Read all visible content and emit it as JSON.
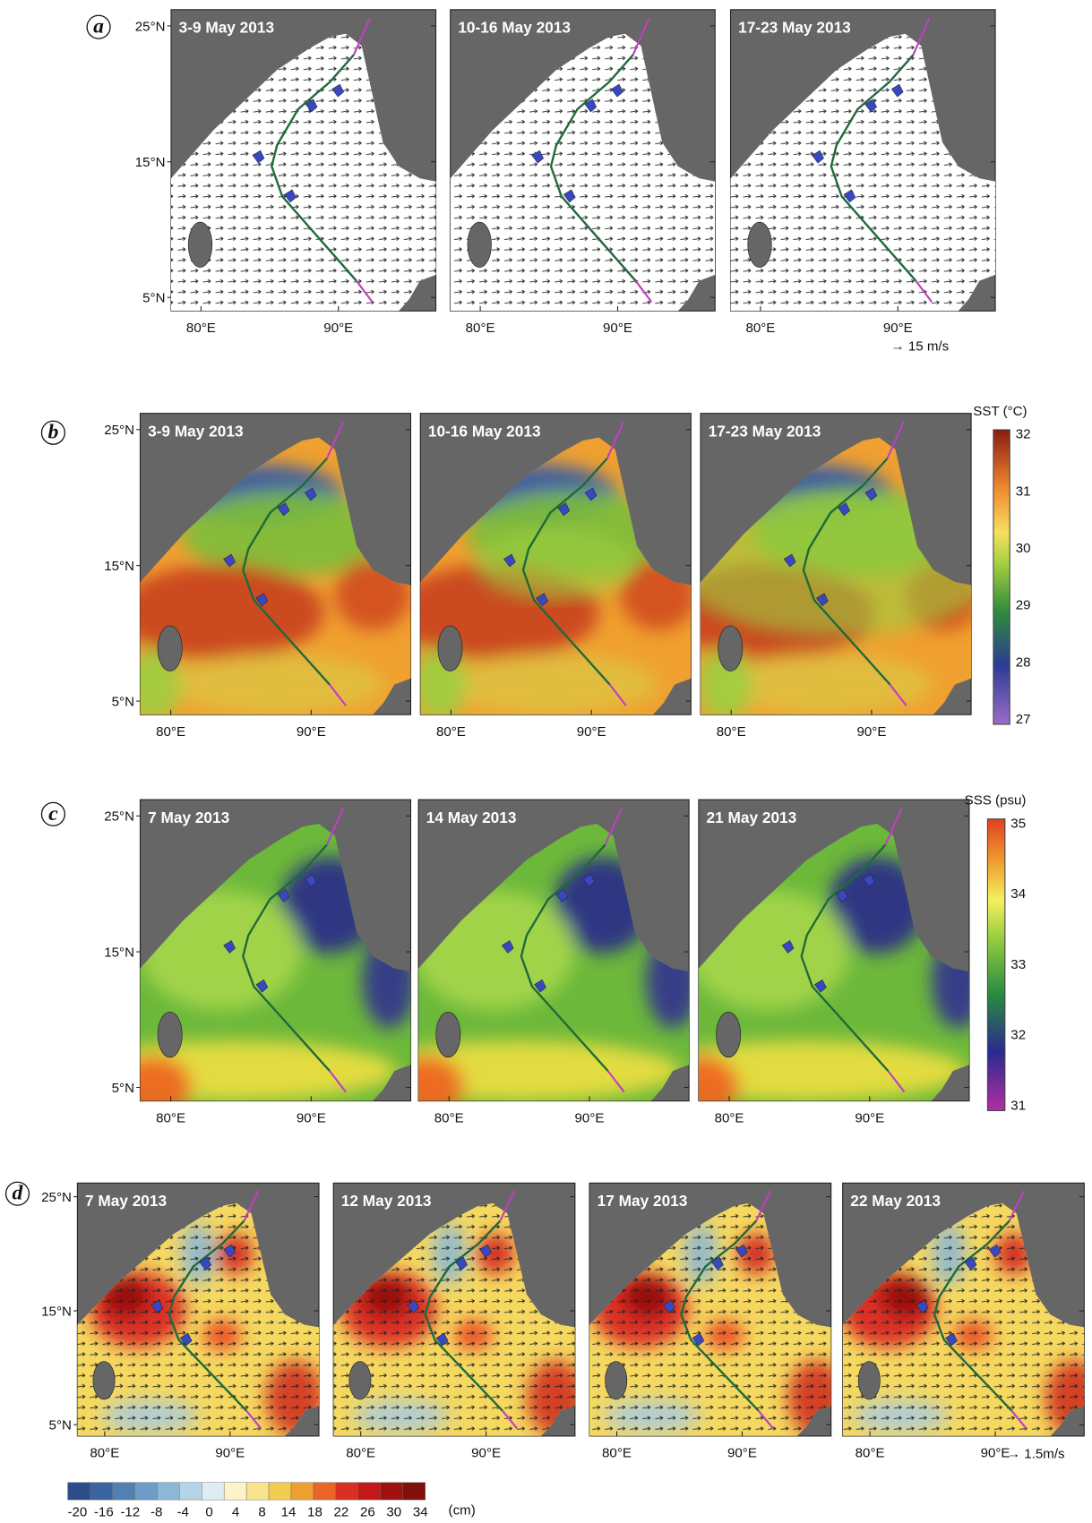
{
  "rows": [
    {
      "label": "a",
      "panels": [
        "3-9 May 2013",
        "10-16 May 2013",
        "17-23 May 2013"
      ],
      "y_ticks": [
        "25°N",
        "15°N",
        "5°N"
      ],
      "x_ticks": [
        "80°E",
        "90°E"
      ],
      "note": "→ 15 m/s"
    },
    {
      "label": "b",
      "panels": [
        "3-9 May 2013",
        "10-16 May 2013",
        "17-23 May 2013"
      ],
      "y_ticks": [
        "25°N",
        "15°N",
        "5°N"
      ],
      "x_ticks": [
        "80°E",
        "90°E"
      ],
      "colorbar": {
        "title": "SST (°C)",
        "ticks": [
          32,
          31,
          30,
          29,
          28,
          27
        ]
      }
    },
    {
      "label": "c",
      "panels": [
        "7 May 2013",
        "14 May 2013",
        "21 May 2013"
      ],
      "y_ticks": [
        "25°N",
        "15°N",
        "5°N"
      ],
      "x_ticks": [
        "80°E",
        "90°E"
      ],
      "colorbar": {
        "title": "SSS (psu)",
        "ticks": [
          35,
          34,
          33,
          32,
          31
        ]
      }
    },
    {
      "label": "d",
      "panels": [
        "7 May 2013",
        "12 May 2013",
        "17 May 2013",
        "22 May 2013"
      ],
      "y_ticks": [
        "25°N",
        "15°N",
        "5°N"
      ],
      "x_ticks": [
        "80°E",
        "90°E"
      ],
      "note": "→ 1.5m/s",
      "colorbar": {
        "title": "(cm)",
        "ticks": [
          -20,
          -16,
          -12,
          -8,
          -4,
          0,
          4,
          8,
          14,
          18,
          22,
          26,
          30,
          34
        ]
      }
    }
  ]
}
